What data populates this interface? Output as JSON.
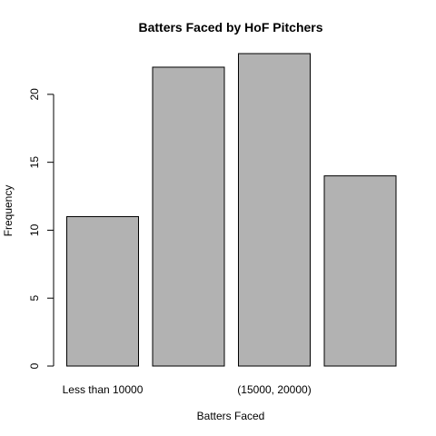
{
  "chart_data": {
    "type": "bar",
    "title": "Batters Faced by HoF Pitchers",
    "xlabel": "Batters Faced",
    "ylabel": "Frequency",
    "categories": [
      "Less than 10000",
      "",
      "(15000, 20000)",
      ""
    ],
    "values": [
      11,
      22,
      23,
      14
    ],
    "ylim": [
      0,
      23
    ],
    "yticks": [
      0,
      5,
      10,
      15,
      20
    ],
    "bar_color": "#b2b2b2",
    "grid": false,
    "legend": "none"
  }
}
